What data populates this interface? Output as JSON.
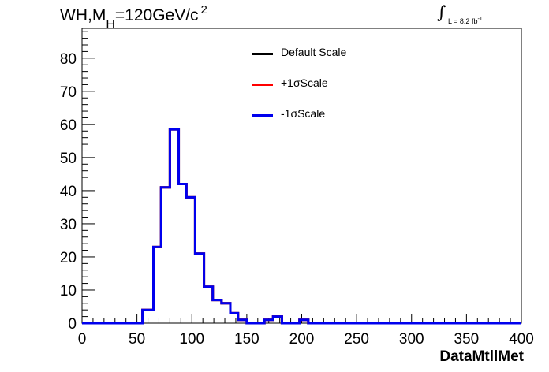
{
  "title": {
    "prefix": "WH,M",
    "sub": "H",
    "value": "=120GeV/c",
    "sup": "2"
  },
  "lumi": {
    "integral": "∫",
    "text": "L = 8.2 fb",
    "sup": "-1"
  },
  "xlabel": "DataMtllMet",
  "legend": [
    {
      "label": "Default Scale",
      "color": "#000000"
    },
    {
      "label": "+1σScale",
      "color": "#ff0000"
    },
    {
      "label": "-1σScale",
      "color": "#0000ee"
    }
  ],
  "chart_data": {
    "type": "histogram",
    "xlim": [
      0,
      400
    ],
    "ylim": [
      0,
      89
    ],
    "x_ticks": [
      0,
      50,
      100,
      150,
      200,
      250,
      300,
      350,
      400
    ],
    "y_ticks": [
      0,
      10,
      20,
      30,
      40,
      50,
      60,
      70,
      80
    ],
    "bin_width": 10,
    "bins": [
      {
        "x0": 0,
        "x1": 55,
        "y": 0
      },
      {
        "x0": 55,
        "x1": 65,
        "y": 4
      },
      {
        "x0": 65,
        "x1": 72,
        "y": 23
      },
      {
        "x0": 72,
        "x1": 80,
        "y": 41
      },
      {
        "x0": 80,
        "x1": 88,
        "y": 58.5
      },
      {
        "x0": 88,
        "x1": 95,
        "y": 42
      },
      {
        "x0": 95,
        "x1": 103,
        "y": 38
      },
      {
        "x0": 103,
        "x1": 111,
        "y": 21
      },
      {
        "x0": 111,
        "x1": 119,
        "y": 11
      },
      {
        "x0": 119,
        "x1": 127,
        "y": 7
      },
      {
        "x0": 127,
        "x1": 135,
        "y": 6
      },
      {
        "x0": 135,
        "x1": 142,
        "y": 3
      },
      {
        "x0": 142,
        "x1": 150,
        "y": 1
      },
      {
        "x0": 150,
        "x1": 166,
        "y": 0
      },
      {
        "x0": 166,
        "x1": 174,
        "y": 1
      },
      {
        "x0": 174,
        "x1": 182,
        "y": 2
      },
      {
        "x0": 182,
        "x1": 190,
        "y": 0
      },
      {
        "x0": 190,
        "x1": 198,
        "y": 0
      },
      {
        "x0": 198,
        "x1": 206,
        "y": 1
      },
      {
        "x0": 206,
        "x1": 400,
        "y": 0
      }
    ],
    "series": [
      {
        "name": "Default Scale",
        "color": "#000000"
      },
      {
        "name": "+1σScale",
        "color": "#ff0000"
      },
      {
        "name": "-1σScale",
        "color": "#0000ee"
      }
    ]
  }
}
